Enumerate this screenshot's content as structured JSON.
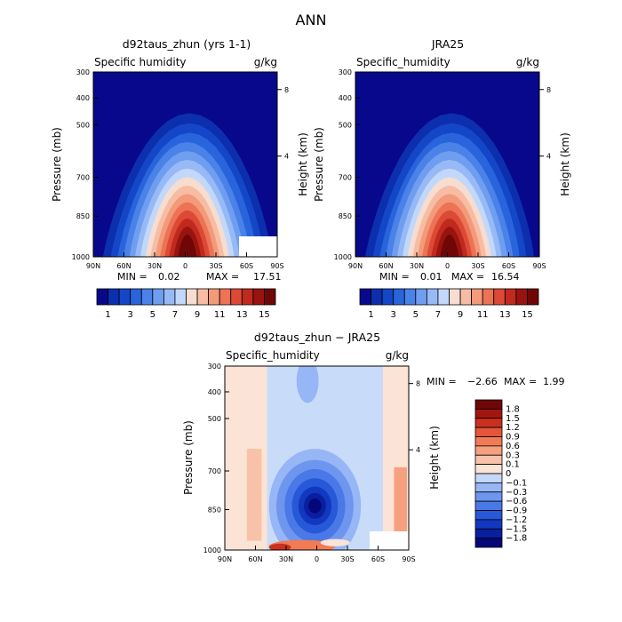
{
  "figure": {
    "title": "ANN"
  },
  "colors": {
    "abs_scale": [
      "#08088c",
      "#0c2fae",
      "#1447c8",
      "#2a64dc",
      "#4a82e8",
      "#6f9ef0",
      "#97baf6",
      "#c2d8fb",
      "#f6ddcf",
      "#f7bda4",
      "#f39a7a",
      "#ec7355",
      "#dc4a36",
      "#c02a1e",
      "#98140f",
      "#6f0707"
    ],
    "diff_scale": [
      "#04067a",
      "#0a1fa0",
      "#1238c0",
      "#2658d8",
      "#4a78e6",
      "#6e96ee",
      "#97b6f5",
      "#c4d8fb",
      "#fbe3d6",
      "#f8c2a8",
      "#f5a07e",
      "#f07b55",
      "#e4553a",
      "#c9301f",
      "#a3150f",
      "#6e0705"
    ]
  },
  "chart_data": [
    {
      "type": "heatmap",
      "title": "d92taus_zhun (yrs 1-1)",
      "subtitle_left": "Specific humidity",
      "subtitle_right": "g/kg",
      "xlabel": "",
      "ylabel": "Pressure (mb)",
      "ylabel_right": "Height (km)",
      "x_ticks": [
        "90N",
        "60N",
        "30N",
        "0",
        "30S",
        "60S",
        "90S"
      ],
      "y_ticks": [
        "300",
        "400",
        "500",
        "700",
        "850",
        "1000"
      ],
      "y_ticks_right": [
        "8",
        "4"
      ],
      "min_label": "MIN =",
      "min": "0.02",
      "max_label": "MAX =",
      "max": "17.51",
      "colorbar_labels": [
        "1",
        "3",
        "5",
        "7",
        "9",
        "11",
        "13",
        "15"
      ],
      "peak_value": 17.51,
      "peak_lat": -2
    },
    {
      "type": "heatmap",
      "title": "JRA25",
      "subtitle_left": "Specific_humidity",
      "subtitle_right": "g/kg",
      "xlabel": "",
      "ylabel": "Pressure (mb)",
      "ylabel_right": "Height (km)",
      "x_ticks": [
        "90N",
        "60N",
        "30N",
        "0",
        "30S",
        "60S",
        "90S"
      ],
      "y_ticks": [
        "300",
        "400",
        "500",
        "700",
        "850",
        "1000"
      ],
      "y_ticks_right": [
        "8",
        "4"
      ],
      "min_label": "MIN =",
      "min": "0.01",
      "max_label": "MAX =",
      "max": "16.54",
      "colorbar_labels": [
        "1",
        "3",
        "5",
        "7",
        "9",
        "11",
        "13",
        "15"
      ],
      "peak_value": 16.54,
      "peak_lat": -2
    },
    {
      "type": "heatmap",
      "title": "d92taus_zhun − JRA25",
      "subtitle_left": "Specific_humidity",
      "subtitle_right": "g/kg",
      "xlabel": "",
      "ylabel": "Pressure (mb)",
      "ylabel_right": "Height (km)",
      "x_ticks": [
        "90N",
        "60N",
        "30N",
        "0",
        "30S",
        "60S",
        "90S"
      ],
      "y_ticks": [
        "300",
        "400",
        "500",
        "700",
        "850",
        "1000"
      ],
      "y_ticks_right": [
        "8",
        "4"
      ],
      "min_label": "MIN =",
      "min": "−2.66",
      "max_label": "MAX =",
      "max": "1.99",
      "colorbar_labels": [
        "1.8",
        "1.5",
        "1.2",
        "0.9",
        "0.6",
        "0.3",
        "0.1",
        "0",
        "−0.1",
        "−0.3",
        "−0.6",
        "−0.9",
        "−1.2",
        "−1.5",
        "−1.8"
      ]
    }
  ]
}
